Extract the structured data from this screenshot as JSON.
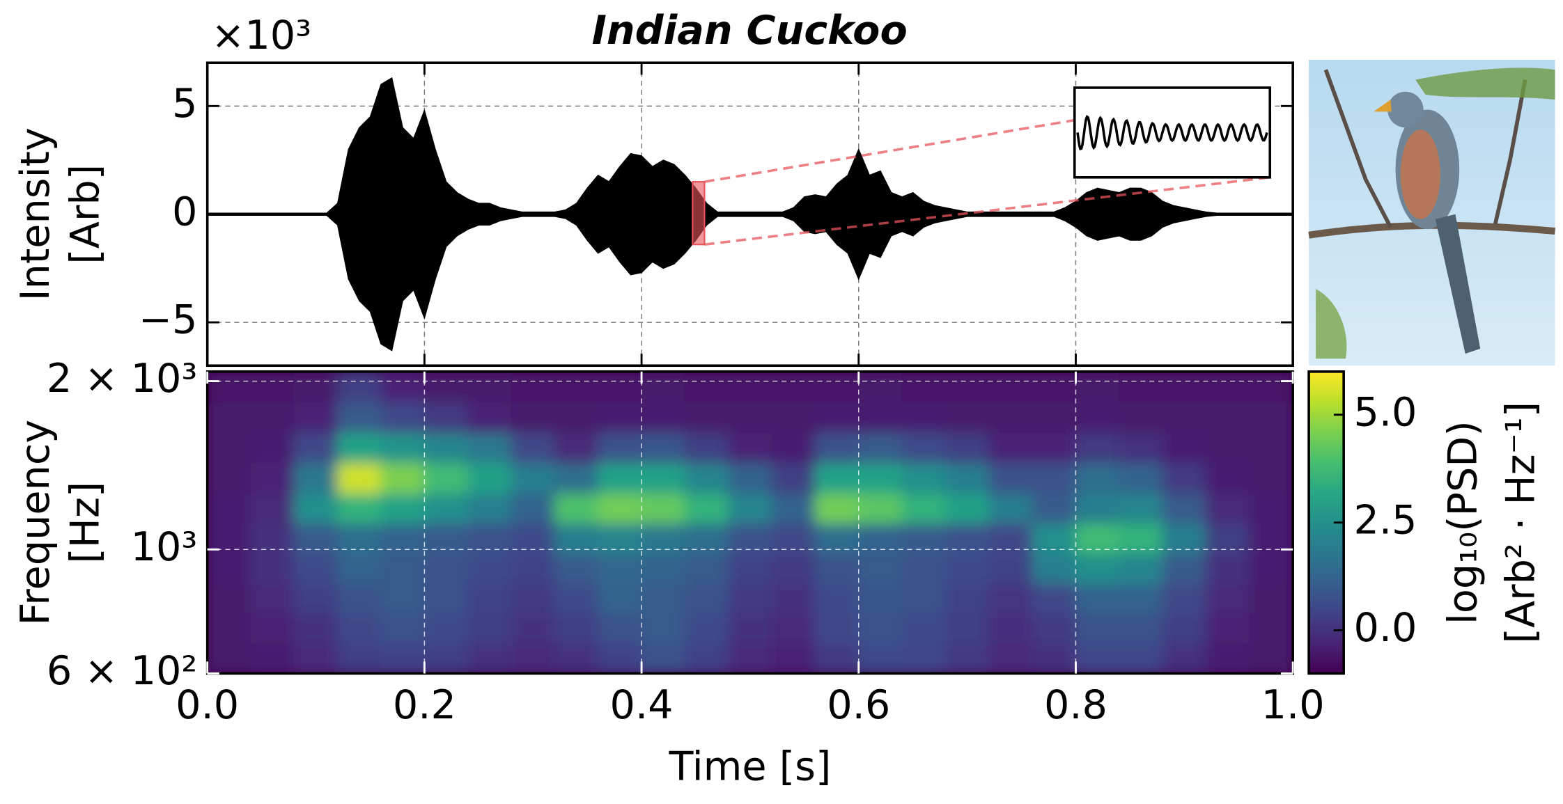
{
  "chart_data": [
    {
      "type": "waveform",
      "title": "Indian Cuckoo",
      "multiplier": "×10³",
      "ylabel": [
        "Intensity",
        "[Arb]"
      ],
      "xlim": [
        0,
        1
      ],
      "xticks": [
        0,
        0.2,
        0.4,
        0.6,
        0.8,
        1
      ],
      "ylim": [
        -7,
        7
      ],
      "yticks": [
        {
          "value": -5,
          "label": "−5"
        },
        0,
        5
      ],
      "grid": true,
      "color": "#000000",
      "highlight": {
        "xlim": [
          0.447,
          0.458
        ],
        "ylim": [
          -1.4,
          1.5
        ],
        "color": "#e8535c"
      },
      "x": [
        0,
        0.01,
        0.02,
        0.03,
        0.04,
        0.05,
        0.06,
        0.07,
        0.08,
        0.09,
        0.1,
        0.11,
        0.12,
        0.13,
        0.14,
        0.15,
        0.16,
        0.17,
        0.18,
        0.19,
        0.2,
        0.21,
        0.22,
        0.23,
        0.24,
        0.25,
        0.26,
        0.27,
        0.28,
        0.29,
        0.3,
        0.31,
        0.32,
        0.33,
        0.34,
        0.35,
        0.36,
        0.37,
        0.38,
        0.39,
        0.4,
        0.41,
        0.42,
        0.43,
        0.44,
        0.45,
        0.46,
        0.47,
        0.48,
        0.49,
        0.5,
        0.51,
        0.52,
        0.53,
        0.54,
        0.55,
        0.56,
        0.57,
        0.58,
        0.59,
        0.6,
        0.61,
        0.62,
        0.63,
        0.64,
        0.65,
        0.66,
        0.67,
        0.68,
        0.69,
        0.7,
        0.71,
        0.72,
        0.73,
        0.74,
        0.75,
        0.76,
        0.77,
        0.78,
        0.79,
        0.8,
        0.81,
        0.82,
        0.83,
        0.84,
        0.85,
        0.86,
        0.87,
        0.88,
        0.89,
        0.9,
        0.91,
        0.92,
        0.93,
        0.94,
        0.95,
        0.96,
        0.97,
        0.98,
        0.99,
        1
      ],
      "values": [
        0.05,
        0.05,
        0.05,
        0.05,
        0.05,
        0.05,
        0.05,
        0.05,
        0.05,
        0.05,
        0.05,
        0.05,
        0.5,
        3,
        4,
        4.5,
        6,
        6.3,
        4,
        3.5,
        4.8,
        3,
        1.5,
        1,
        0.7,
        0.5,
        0.5,
        0.3,
        0.2,
        0.1,
        0.1,
        0.1,
        0.1,
        0.2,
        0.5,
        1.2,
        1.8,
        1.5,
        2.2,
        2.8,
        2.7,
        2.2,
        2.5,
        2.3,
        1.8,
        1.2,
        0.5,
        0.1,
        0.1,
        0.1,
        0.1,
        0.1,
        0.1,
        0.1,
        0.3,
        0.8,
        0.9,
        0.8,
        1.4,
        1.8,
        3,
        1.8,
        2,
        1,
        0.8,
        1,
        0.6,
        0.4,
        0.3,
        0.2,
        0.1,
        0.1,
        0.1,
        0.1,
        0.1,
        0.1,
        0.1,
        0.1,
        0.1,
        0.3,
        0.6,
        1,
        1.2,
        1.1,
        1,
        1.2,
        1.2,
        1,
        0.6,
        0.4,
        0.3,
        0.2,
        0.1,
        0.05,
        0.05,
        0.05,
        0.05,
        0.05,
        0.05,
        0.05,
        0.05
      ]
    },
    {
      "type": "spectrogram",
      "xlabel": "Time [s]",
      "ylabel": [
        "Frequency",
        "[Hz]"
      ],
      "colorbar_label": [
        "log₁₀(PSD)",
        "[Arb² · Hz⁻¹]"
      ],
      "xlim": [
        0,
        1
      ],
      "xticks": [
        {
          "value": 0,
          "label": "0.0"
        },
        0.2,
        0.4,
        0.6,
        0.8,
        {
          "value": 1,
          "label": "1.0"
        }
      ],
      "ylim": [
        600,
        2080
      ],
      "yscale": "log",
      "yticks": [
        {
          "value": 600,
          "label": "6 × 10²"
        },
        {
          "value": 1000,
          "label": "10³"
        },
        {
          "value": 2000,
          "label": "2 × 10³"
        }
      ],
      "grid": true,
      "colormap": "viridis",
      "zlim": [
        -1,
        6
      ],
      "zticks": [
        {
          "value": 0,
          "label": "0.0"
        },
        2.5,
        {
          "value": 5,
          "label": "5.0"
        }
      ],
      "xbins": [
        0,
        0.04,
        0.08,
        0.12,
        0.16,
        0.2,
        0.24,
        0.28,
        0.32,
        0.36,
        0.4,
        0.44,
        0.48,
        0.52,
        0.56,
        0.6,
        0.64,
        0.68,
        0.72,
        0.76,
        0.8,
        0.84,
        0.88,
        0.92,
        0.96,
        1
      ],
      "ybins": [
        600,
        680,
        770,
        870,
        985,
        1115,
        1260,
        1430,
        1620,
        1835,
        2080
      ],
      "z": [
        [
          -0.5,
          -0.4,
          -0.2,
          0.3,
          0.4,
          0.3,
          0.0,
          -0.2,
          0.0,
          0.4,
          0.8,
          0.4,
          -0.2,
          -0.3,
          0.2,
          0.6,
          0.5,
          0.2,
          -0.2,
          0.0,
          0.5,
          0.5,
          0.0,
          -0.4,
          -0.5
        ],
        [
          -0.5,
          -0.3,
          0.0,
          0.5,
          0.8,
          0.6,
          0.3,
          0.0,
          0.3,
          0.8,
          1.0,
          0.6,
          0.0,
          -0.2,
          0.5,
          0.8,
          0.6,
          0.3,
          -0.1,
          0.2,
          0.8,
          0.8,
          0.3,
          -0.3,
          -0.5
        ],
        [
          -0.5,
          -0.2,
          0.3,
          0.8,
          1.0,
          0.8,
          0.4,
          0.2,
          0.6,
          1.2,
          1.0,
          0.8,
          0.2,
          0.0,
          0.6,
          0.9,
          0.8,
          0.4,
          0.1,
          0.5,
          1.2,
          1.2,
          0.5,
          -0.2,
          -0.5
        ],
        [
          -0.4,
          0.0,
          0.6,
          1.2,
          1.0,
          0.8,
          0.6,
          0.4,
          1.0,
          1.3,
          1.2,
          1.0,
          0.4,
          0.2,
          0.8,
          1.0,
          0.8,
          0.6,
          0.4,
          2.0,
          2.5,
          2.2,
          1.0,
          0.0,
          -0.4
        ],
        [
          -0.4,
          0.0,
          1.0,
          1.5,
          1.2,
          1.0,
          0.8,
          0.6,
          2.0,
          2.2,
          1.8,
          1.5,
          0.8,
          0.5,
          1.5,
          1.2,
          1.0,
          0.8,
          0.5,
          2.5,
          3.8,
          3.5,
          2.0,
          0.3,
          -0.4
        ],
        [
          -0.4,
          -0.2,
          2.5,
          3.5,
          3.0,
          2.5,
          2.0,
          1.2,
          4.0,
          4.5,
          4.3,
          3.5,
          2.2,
          1.2,
          4.5,
          4.2,
          3.5,
          3.0,
          2.0,
          1.0,
          2.0,
          2.2,
          1.0,
          -0.2,
          -0.4
        ],
        [
          -0.5,
          -0.3,
          1.8,
          5.5,
          4.6,
          3.8,
          3.0,
          2.0,
          1.5,
          3.0,
          3.0,
          2.2,
          1.2,
          0.3,
          3.0,
          3.0,
          2.5,
          2.0,
          0.8,
          0.8,
          1.5,
          1.2,
          0.2,
          -0.4,
          -0.5
        ],
        [
          -0.5,
          -0.4,
          0.5,
          3.0,
          2.6,
          2.2,
          1.8,
          0.5,
          -0.2,
          0.8,
          0.9,
          0.3,
          -0.3,
          -0.4,
          0.8,
          1.0,
          0.6,
          0.3,
          -0.3,
          -0.3,
          0.2,
          0.0,
          -0.4,
          -0.5,
          -0.5
        ],
        [
          -0.5,
          -0.5,
          -0.3,
          1.0,
          0.5,
          0.2,
          -0.3,
          -0.5,
          -0.5,
          -0.4,
          -0.4,
          -0.5,
          -0.5,
          -0.5,
          -0.4,
          -0.4,
          -0.4,
          -0.5,
          -0.5,
          -0.5,
          -0.4,
          -0.5,
          -0.5,
          -0.5,
          -0.5
        ],
        [
          -0.6,
          -0.6,
          -0.5,
          0.3,
          -0.3,
          -0.5,
          -0.5,
          -0.6,
          -0.6,
          -0.6,
          -0.5,
          -0.6,
          -0.6,
          -0.6,
          -0.6,
          -0.5,
          -0.6,
          -0.6,
          -0.6,
          -0.6,
          -0.5,
          -0.6,
          -0.6,
          -0.6,
          -0.6
        ]
      ]
    }
  ]
}
